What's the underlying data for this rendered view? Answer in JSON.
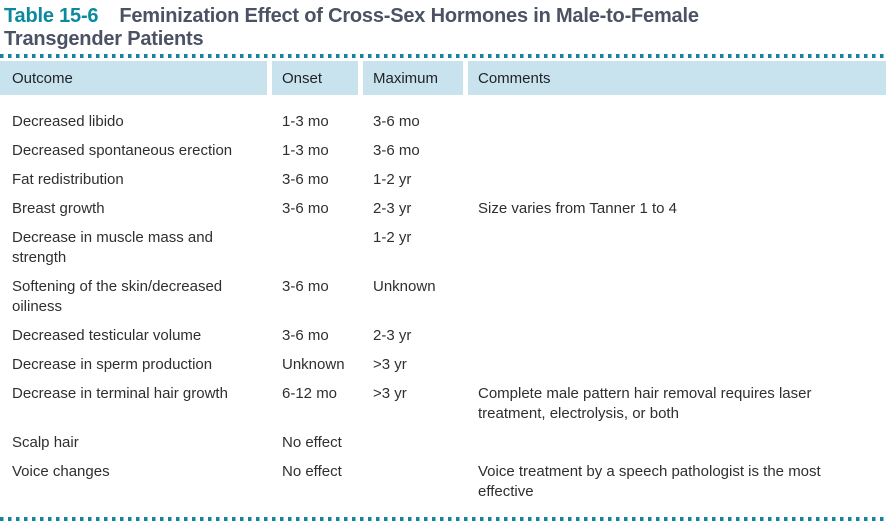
{
  "title": {
    "label": "Table 15-6",
    "text": "Feminization Effect of Cross-Sex Hormones in Male-to-Female\nTransgender Patients"
  },
  "colors": {
    "accent_teal": "#0b8a9e",
    "dotted_line_teal": "#15839b",
    "header_background": "#c8e3ee",
    "title_gray": "#4a5264",
    "body_text": "#2d2f31"
  },
  "table": {
    "columns": [
      "Outcome",
      "Onset",
      "Maximum",
      "Comments"
    ],
    "rows": [
      {
        "outcome": "Decreased libido",
        "onset": "1-3 mo",
        "maximum": "3-6 mo",
        "comments": ""
      },
      {
        "outcome": "Decreased spontaneous erection",
        "onset": "1-3 mo",
        "maximum": "3-6 mo",
        "comments": ""
      },
      {
        "outcome": "Fat redistribution",
        "onset": "3-6 mo",
        "maximum": "1-2 yr",
        "comments": ""
      },
      {
        "outcome": "Breast growth",
        "onset": "3-6 mo",
        "maximum": "2-3 yr",
        "comments": "Size varies from Tanner 1 to 4"
      },
      {
        "outcome": "Decrease in muscle mass and\nstrength",
        "onset": "",
        "maximum": "1-2 yr",
        "comments": ""
      },
      {
        "outcome": "Softening of the skin/decreased\noiliness",
        "onset": "3-6 mo",
        "maximum": "Unknown",
        "comments": ""
      },
      {
        "outcome": "Decreased testicular volume",
        "onset": "3-6 mo",
        "maximum": "2-3 yr",
        "comments": ""
      },
      {
        "outcome": "Decrease in sperm production",
        "onset": "Unknown",
        "maximum": ">3 yr",
        "comments": ""
      },
      {
        "outcome": "Decrease in terminal hair growth",
        "onset": "6-12 mo",
        "maximum": ">3 yr",
        "comments": "Complete male pattern hair removal requires laser\ntreatment, electrolysis, or both"
      },
      {
        "outcome": "Scalp hair",
        "onset": "No effect",
        "maximum": "",
        "comments": ""
      },
      {
        "outcome": "Voice changes",
        "onset": "No effect",
        "maximum": "",
        "comments": "Voice treatment by a speech pathologist is the most\neffective"
      }
    ]
  }
}
